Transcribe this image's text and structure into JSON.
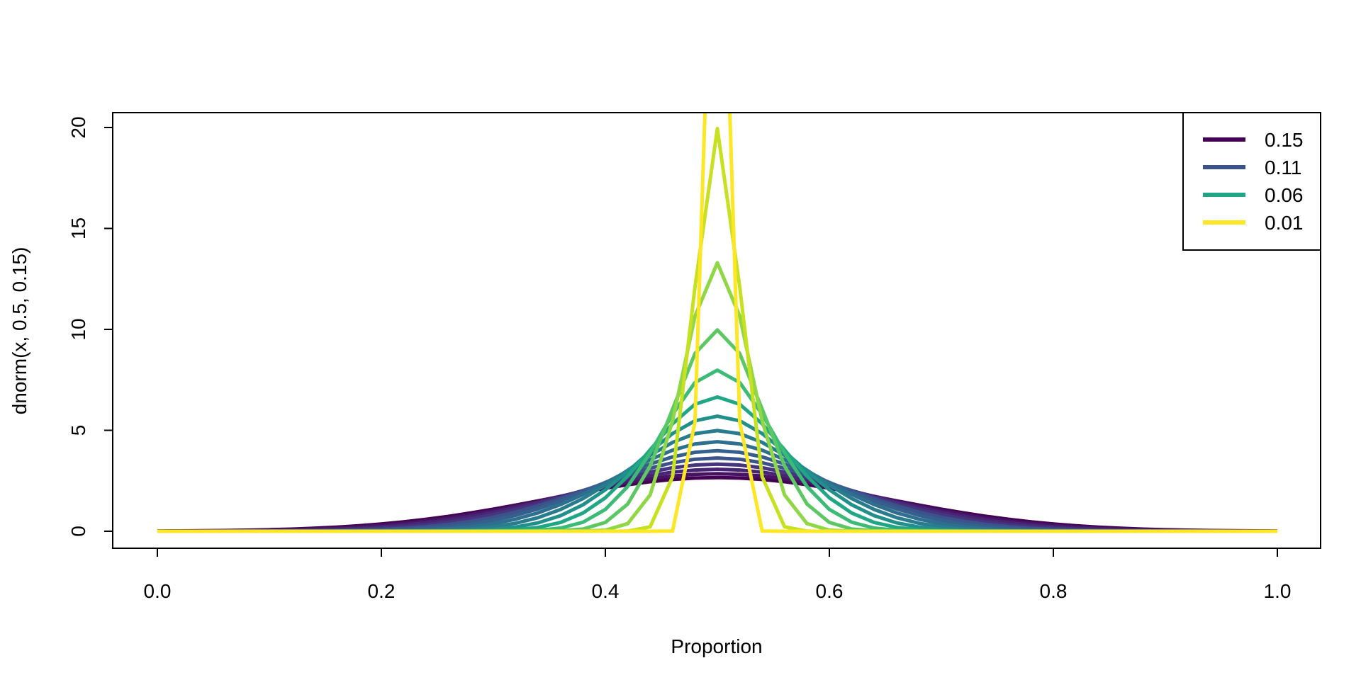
{
  "chart_data": {
    "type": "line",
    "title": "",
    "xlabel": "Proportion",
    "ylabel": "dnorm(x, 0.5, 0.15)",
    "xlim": [
      0,
      1
    ],
    "ylim": [
      0,
      20
    ],
    "x_ticks": [
      "0.0",
      "0.2",
      "0.4",
      "0.6",
      "0.8",
      "1.0"
    ],
    "y_ticks": [
      "0",
      "5",
      "10",
      "15",
      "20"
    ],
    "x_step": 0.02,
    "mean": 0.5,
    "grid": false,
    "legend_position": "top-right",
    "legend": [
      {
        "label": "0.15",
        "color": "#440154"
      },
      {
        "label": "0.11",
        "color": "#3B528B"
      },
      {
        "label": "0.06",
        "color": "#21A685"
      },
      {
        "label": "0.01",
        "color": "#FDE725"
      }
    ],
    "series": [
      {
        "sd": 0.15,
        "color": "#440154"
      },
      {
        "sd": 0.14,
        "color": "#471365"
      },
      {
        "sd": 0.13,
        "color": "#482475"
      },
      {
        "sd": 0.12,
        "color": "#463480"
      },
      {
        "sd": 0.11,
        "color": "#3B528B"
      },
      {
        "sd": 0.1,
        "color": "#35608D"
      },
      {
        "sd": 0.09,
        "color": "#2E6E8E"
      },
      {
        "sd": 0.08,
        "color": "#287C8E"
      },
      {
        "sd": 0.07,
        "color": "#21908C"
      },
      {
        "sd": 0.06,
        "color": "#21A685"
      },
      {
        "sd": 0.05,
        "color": "#3BBB75"
      },
      {
        "sd": 0.04,
        "color": "#5DC863"
      },
      {
        "sd": 0.03,
        "color": "#8FD744"
      },
      {
        "sd": 0.02,
        "color": "#C7E020"
      },
      {
        "sd": 0.01,
        "color": "#FDE725"
      }
    ]
  }
}
